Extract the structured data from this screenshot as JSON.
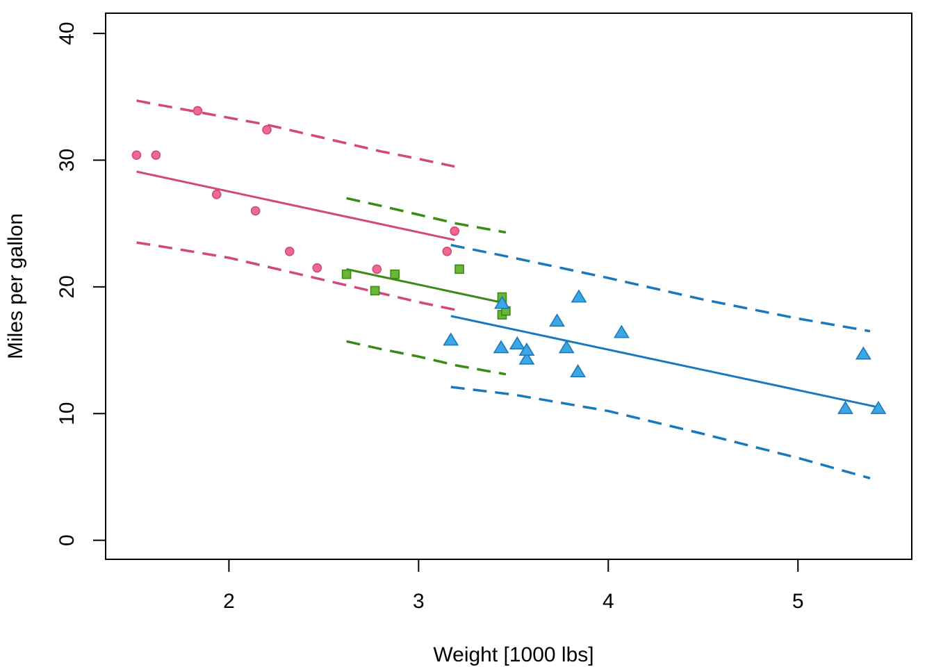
{
  "chart_data": {
    "type": "scatter",
    "title": "",
    "xlabel": "Weight [1000 lbs]",
    "ylabel": "Miles per gallon",
    "xlim": [
      1.35,
      5.6
    ],
    "ylim": [
      -1.5,
      41.6
    ],
    "xticks": [
      2,
      3,
      4,
      5
    ],
    "yticks": [
      0,
      10,
      20,
      30,
      40
    ],
    "grid": false,
    "legend": "none",
    "series": [
      {
        "marker": "circle",
        "color": "#D1487A",
        "fill": "#EE6A8F",
        "points": [
          [
            1.513,
            30.4
          ],
          [
            1.615,
            30.4
          ],
          [
            1.835,
            33.9
          ],
          [
            1.935,
            27.3
          ],
          [
            2.14,
            26.0
          ],
          [
            2.2,
            32.4
          ],
          [
            2.32,
            22.8
          ],
          [
            2.465,
            21.5
          ],
          [
            2.78,
            21.4
          ],
          [
            3.15,
            22.8
          ],
          [
            3.19,
            24.4
          ]
        ],
        "fit": {
          "x": [
            1.513,
            3.19
          ],
          "y": [
            29.1,
            23.7
          ]
        },
        "band_upper": {
          "x": [
            1.513,
            1.6,
            1.8,
            2.0,
            2.2,
            2.4,
            2.6,
            2.8,
            3.0,
            3.19
          ],
          "y": [
            34.7,
            34.45,
            33.9,
            33.35,
            32.8,
            32.1,
            31.4,
            30.7,
            30.1,
            29.5
          ]
        },
        "band_lower": {
          "x": [
            1.513,
            1.6,
            1.8,
            2.0,
            2.2,
            2.4,
            2.6,
            2.8,
            3.0,
            3.19
          ],
          "y": [
            23.5,
            23.3,
            22.8,
            22.3,
            21.6,
            20.9,
            20.2,
            19.5,
            18.8,
            18.2
          ]
        }
      },
      {
        "marker": "square",
        "color": "#3A8A16",
        "fill": "#6AB637",
        "points": [
          [
            2.62,
            21.0
          ],
          [
            2.77,
            19.7
          ],
          [
            2.875,
            21.0
          ],
          [
            3.215,
            21.4
          ],
          [
            3.44,
            18.7
          ],
          [
            3.44,
            17.8
          ],
          [
            3.44,
            19.2
          ],
          [
            3.46,
            18.1
          ]
        ],
        "fit": {
          "x": [
            2.62,
            3.46
          ],
          "y": [
            21.4,
            18.7
          ]
        },
        "band_upper": {
          "x": [
            2.62,
            2.8,
            3.0,
            3.2,
            3.46
          ],
          "y": [
            27.0,
            26.4,
            25.7,
            25.0,
            24.3
          ]
        },
        "band_lower": {
          "x": [
            2.62,
            2.8,
            3.0,
            3.2,
            3.46
          ],
          "y": [
            15.7,
            15.1,
            14.5,
            13.8,
            13.1
          ]
        }
      },
      {
        "marker": "triangle",
        "color": "#1A78BD",
        "fill": "#3BA8E4",
        "points": [
          [
            3.17,
            15.8
          ],
          [
            3.435,
            15.2
          ],
          [
            3.52,
            15.5
          ],
          [
            3.57,
            14.3
          ],
          [
            3.57,
            15.0
          ],
          [
            3.73,
            17.3
          ],
          [
            3.78,
            15.2
          ],
          [
            3.84,
            13.3
          ],
          [
            3.845,
            19.2
          ],
          [
            4.07,
            16.4
          ],
          [
            5.25,
            10.4
          ],
          [
            5.345,
            14.7
          ],
          [
            5.424,
            10.4
          ],
          [
            3.44,
            18.7
          ]
        ],
        "fit": {
          "x": [
            3.17,
            5.424
          ],
          "y": [
            17.7,
            10.5
          ]
        },
        "band_upper": {
          "x": [
            3.17,
            3.5,
            4.0,
            4.5,
            5.0,
            5.38
          ],
          "y": [
            23.3,
            22.3,
            20.7,
            19.0,
            17.5,
            16.5
          ]
        },
        "band_lower": {
          "x": [
            3.17,
            3.5,
            4.0,
            4.5,
            5.0,
            5.38
          ],
          "y": [
            12.1,
            11.5,
            10.2,
            8.4,
            6.5,
            4.9
          ]
        }
      }
    ]
  }
}
